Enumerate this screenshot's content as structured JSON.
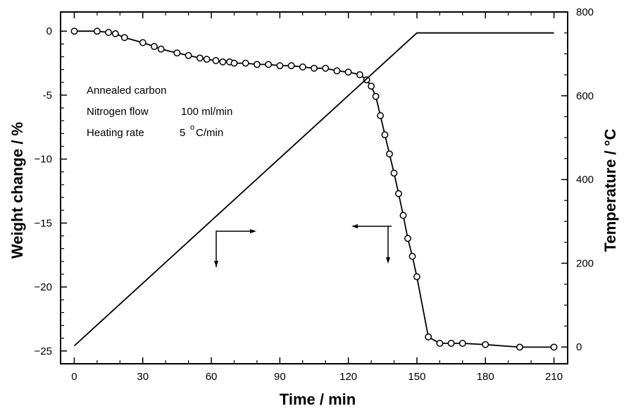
{
  "chart_data": {
    "type": "line",
    "xlabel": "Time / min",
    "ylabel_left": "Weight change / %",
    "ylabel_right": "Temperature / °C",
    "xlim": [
      -6,
      216
    ],
    "ylim_left": [
      -26,
      1.5
    ],
    "ylim_right": [
      -40,
      800
    ],
    "x_ticks": [
      0,
      30,
      60,
      90,
      120,
      150,
      180,
      210
    ],
    "y_left_ticks": [
      0,
      -5,
      -10,
      -15,
      -20,
      -25
    ],
    "y_left_tick_labels": [
      "0",
      "-5",
      "−10",
      "−15",
      "−20",
      "−25"
    ],
    "y_right_ticks": [
      0,
      200,
      400,
      600,
      800
    ],
    "grid": false,
    "annotation": {
      "line1": "Annealed carbon",
      "line2_label": "Nitrogen flow",
      "line2_value": "100 ml/min",
      "line3_label": "Heating rate",
      "line3_value_num": "5",
      "line3_value_sup": "o",
      "line3_value_unit": "C/min"
    },
    "series": [
      {
        "axis": "left",
        "marker": "circle",
        "x": [
          0,
          10,
          15,
          18,
          22,
          30,
          35,
          38,
          45,
          50,
          55,
          58,
          62,
          65,
          68,
          70,
          75,
          80,
          85,
          90,
          95,
          100,
          105,
          110,
          115,
          120,
          125,
          128,
          130,
          132,
          134,
          136,
          138,
          140,
          142,
          144,
          146,
          148,
          150,
          155,
          160,
          165,
          170,
          180,
          195,
          210
        ],
        "y": [
          0,
          0,
          -0.1,
          -0.2,
          -0.5,
          -0.9,
          -1.2,
          -1.4,
          -1.7,
          -1.9,
          -2.1,
          -2.2,
          -2.3,
          -2.4,
          -2.4,
          -2.5,
          -2.5,
          -2.6,
          -2.6,
          -2.7,
          -2.7,
          -2.8,
          -2.9,
          -2.9,
          -3.1,
          -3.2,
          -3.4,
          -3.8,
          -4.3,
          -5.1,
          -6.6,
          -8.1,
          -9.6,
          -11.1,
          -12.7,
          -14.4,
          -16.2,
          -17.6,
          -19.2,
          -23.9,
          -24.4,
          -24.4,
          -24.4,
          -24.5,
          -24.7,
          -24.7
        ]
      },
      {
        "axis": "right",
        "marker": "none",
        "x": [
          0,
          150,
          210
        ],
        "y": [
          3,
          750,
          750
        ]
      }
    ]
  }
}
